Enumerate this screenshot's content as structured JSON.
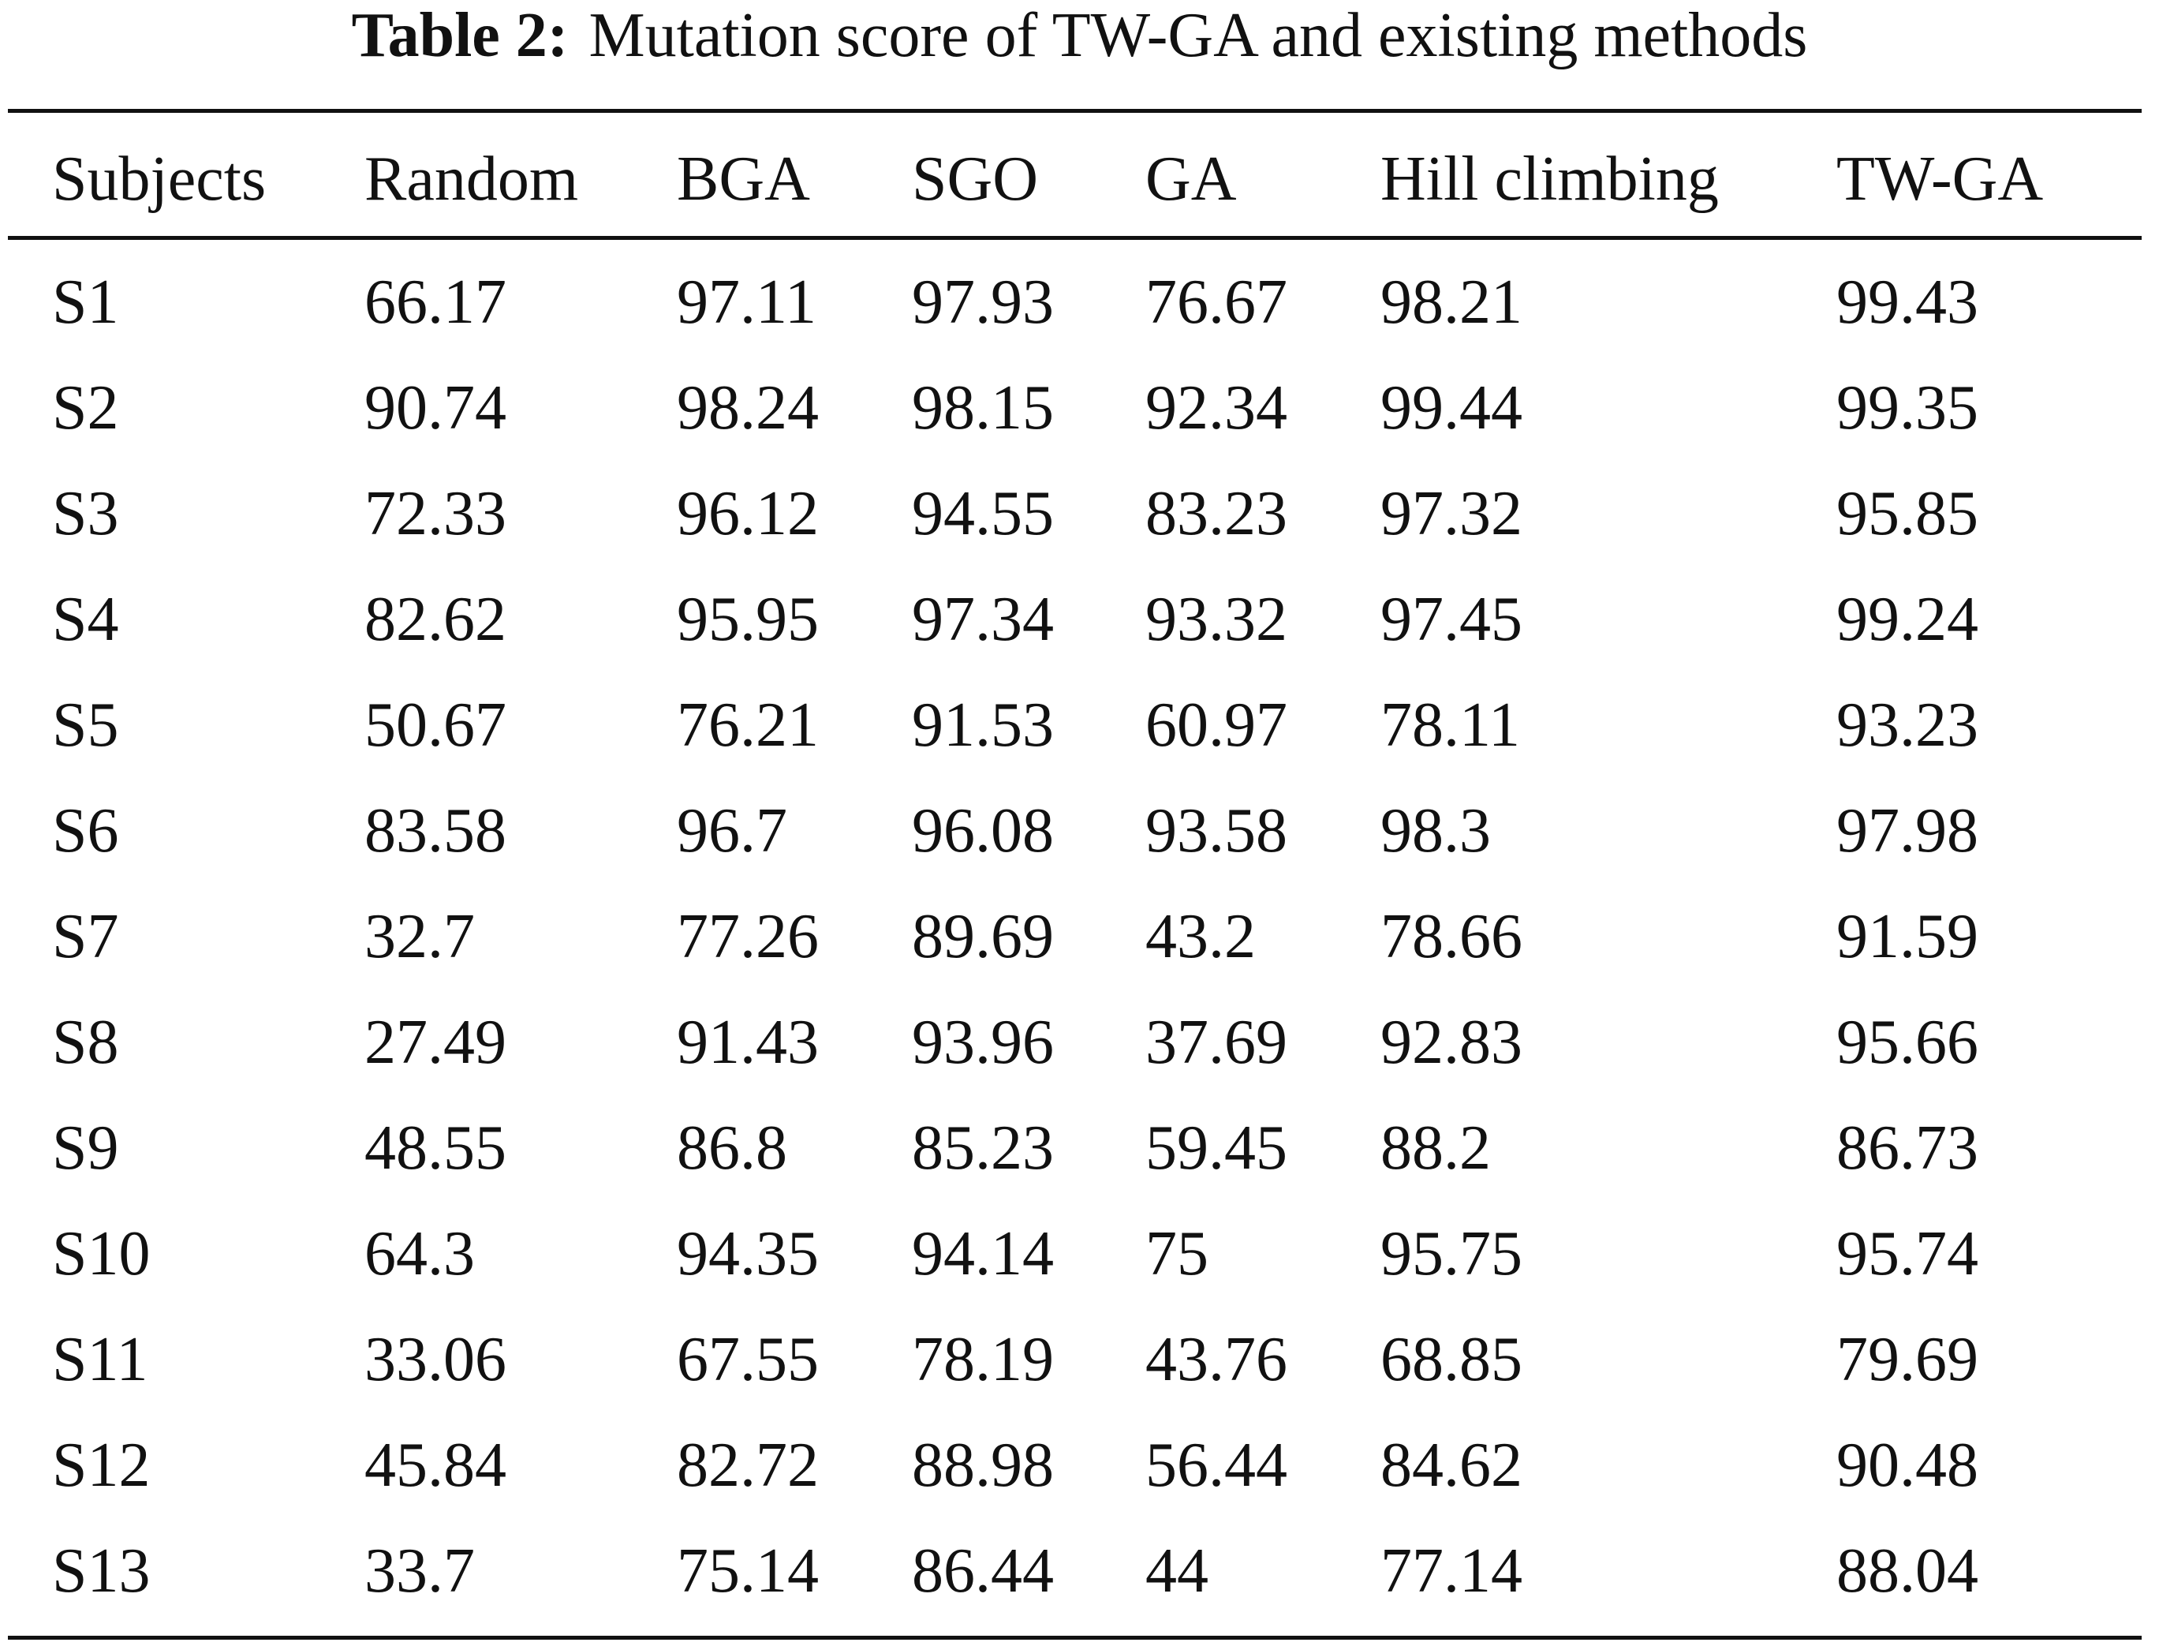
{
  "table": {
    "caption_label": "Table 2:",
    "caption_text": "Mutation score of TW-GA and existing methods",
    "columns": [
      "Subjects",
      "Random",
      "BGA",
      "SGO",
      "GA",
      "Hill climbing",
      "TW-GA"
    ],
    "rows": [
      [
        "S1",
        "66.17",
        "97.11",
        "97.93",
        "76.67",
        "98.21",
        "99.43"
      ],
      [
        "S2",
        "90.74",
        "98.24",
        "98.15",
        "92.34",
        "99.44",
        "99.35"
      ],
      [
        "S3",
        "72.33",
        "96.12",
        "94.55",
        "83.23",
        "97.32",
        "95.85"
      ],
      [
        "S4",
        "82.62",
        "95.95",
        "97.34",
        "93.32",
        "97.45",
        "99.24"
      ],
      [
        "S5",
        "50.67",
        "76.21",
        "91.53",
        "60.97",
        "78.11",
        "93.23"
      ],
      [
        "S6",
        "83.58",
        "96.7",
        "96.08",
        "93.58",
        "98.3",
        "97.98"
      ],
      [
        "S7",
        "32.7",
        "77.26",
        "89.69",
        "43.2",
        "78.66",
        "91.59"
      ],
      [
        "S8",
        "27.49",
        "91.43",
        "93.96",
        "37.69",
        "92.83",
        "95.66"
      ],
      [
        "S9",
        "48.55",
        "86.8",
        "85.23",
        "59.45",
        "88.2",
        "86.73"
      ],
      [
        "S10",
        "64.3",
        "94.35",
        "94.14",
        "75",
        "95.75",
        "95.74"
      ],
      [
        "S11",
        "33.06",
        "67.55",
        "78.19",
        "43.76",
        "68.85",
        "79.69"
      ],
      [
        "S12",
        "45.84",
        "82.72",
        "88.98",
        "56.44",
        "84.62",
        "90.48"
      ],
      [
        "S13",
        "33.7",
        "75.14",
        "86.44",
        "44",
        "77.14",
        "88.04"
      ]
    ]
  }
}
